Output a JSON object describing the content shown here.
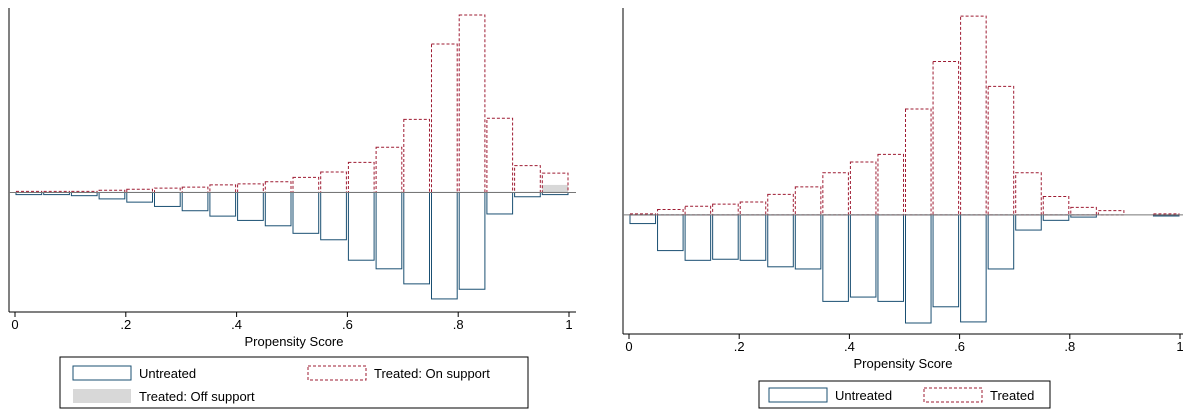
{
  "chart_data": [
    {
      "type": "bar",
      "subtype": "mirrored-histogram",
      "xlabel": "Propensity Score",
      "xlim": [
        0,
        1
      ],
      "xticks": [
        "0",
        ".2",
        ".4",
        ".6",
        ".8",
        "1"
      ],
      "ylim": [
        -100,
        165
      ],
      "grid": false,
      "legend": {
        "placement": "bottom",
        "entries": [
          {
            "label": "Untreated",
            "style": "blue-outline"
          },
          {
            "label": "Treated: On support",
            "style": "red-dashed"
          },
          {
            "label": "Treated: Off support",
            "style": "gray-fill"
          }
        ]
      },
      "bin_width": 0.05,
      "bin_starts": [
        0,
        0.05,
        0.1,
        0.15,
        0.2,
        0.25,
        0.3,
        0.35,
        0.4,
        0.45,
        0.5,
        0.55,
        0.6,
        0.65,
        0.7,
        0.75,
        0.8,
        0.85,
        0.9,
        0.95
      ],
      "series": [
        {
          "name": "Untreated",
          "direction": "down",
          "values": [
            2,
            2,
            3,
            6,
            9,
            13,
            17,
            22,
            26,
            31,
            38,
            44,
            63,
            71,
            85,
            99,
            90,
            20,
            4,
            2
          ]
        },
        {
          "name": "Treated: On support",
          "direction": "up",
          "values": [
            1,
            1,
            1,
            2,
            3,
            4,
            5,
            7,
            8,
            10,
            14,
            19,
            28,
            42,
            68,
            138,
            165,
            69,
            25,
            18
          ]
        },
        {
          "name": "Treated: Off support",
          "direction": "up",
          "values": [
            0,
            0,
            0,
            0,
            0,
            0,
            0,
            0,
            0,
            0,
            0,
            0,
            0,
            0,
            0,
            0,
            0,
            0,
            0,
            7
          ]
        }
      ]
    },
    {
      "type": "bar",
      "subtype": "mirrored-histogram",
      "xlabel": "Propensity Score",
      "xlim": [
        0,
        1
      ],
      "xticks": [
        "0",
        ".2",
        ".4",
        ".6",
        ".8",
        "1"
      ],
      "ylim": [
        -100,
        185
      ],
      "grid": false,
      "legend": {
        "placement": "bottom",
        "entries": [
          {
            "label": "Untreated",
            "style": "blue-outline"
          },
          {
            "label": "Treated",
            "style": "red-dashed"
          }
        ]
      },
      "bin_width": 0.05,
      "bin_starts": [
        0,
        0.05,
        0.1,
        0.15,
        0.2,
        0.25,
        0.3,
        0.35,
        0.4,
        0.45,
        0.5,
        0.55,
        0.6,
        0.65,
        0.7,
        0.75,
        0.8,
        0.85,
        0.9,
        0.95
      ],
      "series": [
        {
          "name": "Untreated",
          "direction": "down",
          "values": [
            8,
            33,
            42,
            41,
            42,
            48,
            50,
            80,
            76,
            80,
            100,
            85,
            99,
            50,
            14,
            5,
            2,
            0,
            0,
            1
          ]
        },
        {
          "name": "Treated",
          "direction": "up",
          "values": [
            1,
            5,
            8,
            10,
            12,
            19,
            26,
            39,
            49,
            56,
            98,
            142,
            184,
            119,
            39,
            17,
            7,
            4,
            0,
            1
          ]
        }
      ]
    }
  ]
}
